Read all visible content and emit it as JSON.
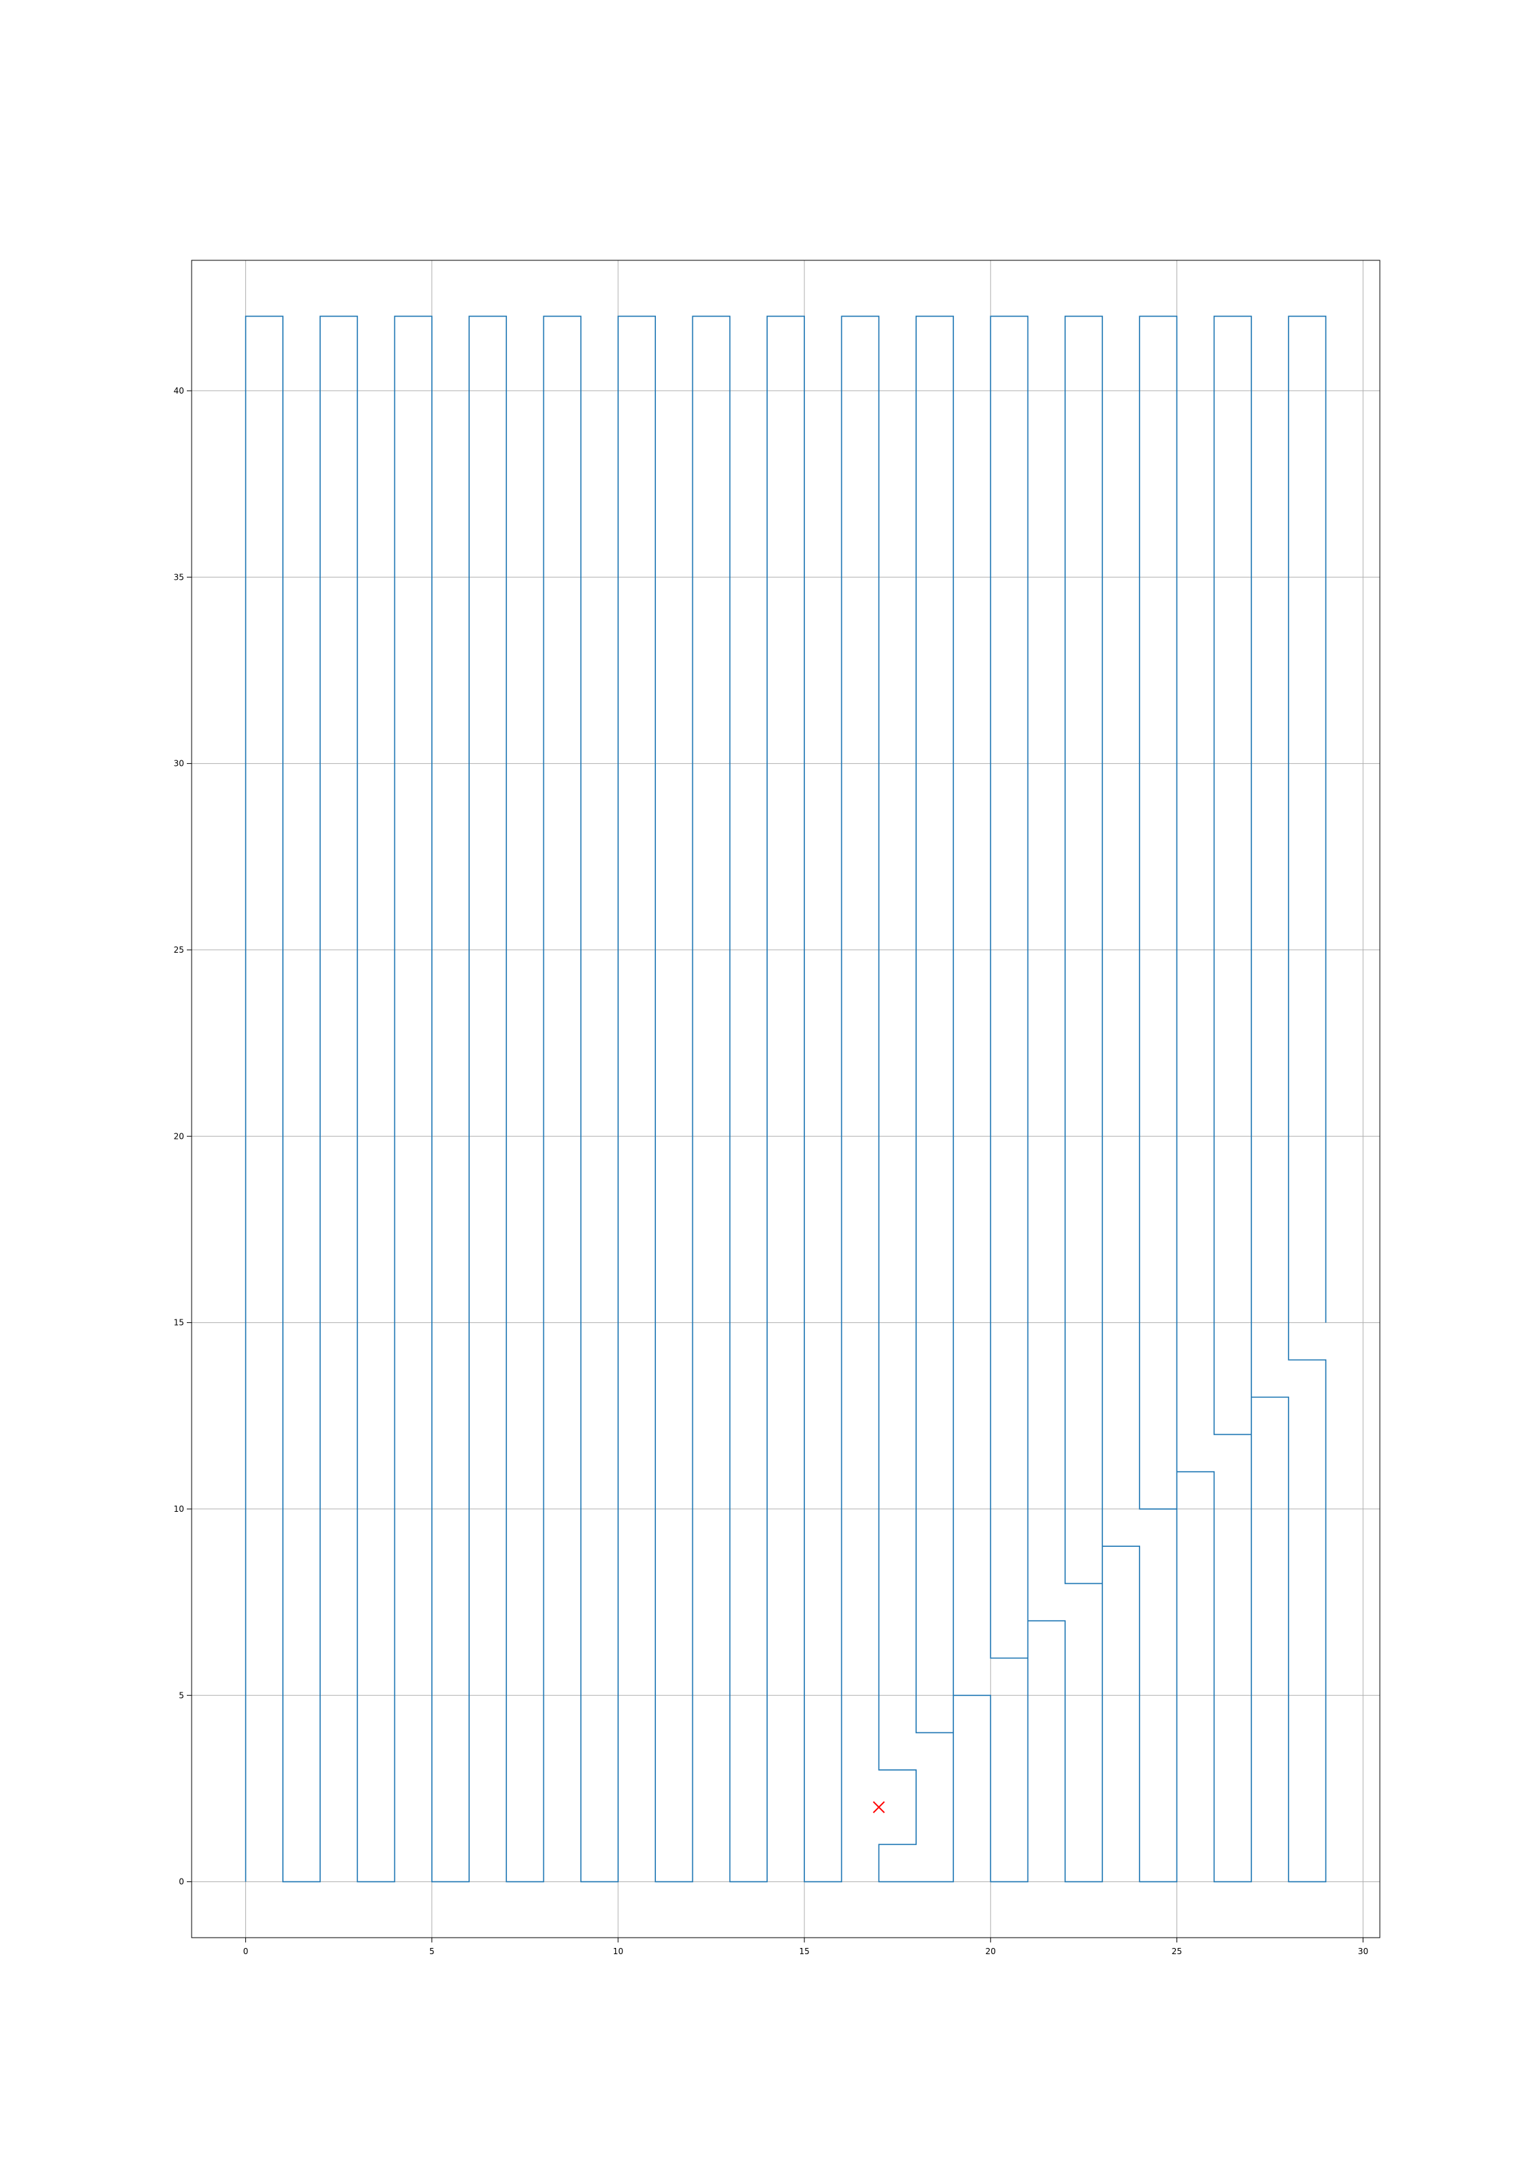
{
  "chart_data": {
    "type": "line",
    "title": "",
    "xlabel": "",
    "ylabel": "",
    "xlim": [
      -1.45,
      30.45
    ],
    "ylim": [
      -1.5,
      43.5
    ],
    "x_ticks": [
      0,
      5,
      10,
      15,
      20,
      25,
      30
    ],
    "y_ticks": [
      0,
      5,
      10,
      15,
      20,
      25,
      30,
      35,
      40
    ],
    "grid": true,
    "legend": "none",
    "series": [
      {
        "color": "#1f77b4",
        "points": [
          [
            0,
            0
          ],
          [
            0,
            42
          ],
          [
            1,
            42
          ],
          [
            1,
            0
          ],
          [
            2,
            0
          ],
          [
            2,
            42
          ],
          [
            3,
            42
          ],
          [
            3,
            0
          ],
          [
            4,
            0
          ],
          [
            4,
            42
          ],
          [
            5,
            42
          ],
          [
            5,
            0
          ],
          [
            6,
            0
          ],
          [
            6,
            42
          ],
          [
            7,
            42
          ],
          [
            7,
            0
          ],
          [
            8,
            0
          ],
          [
            8,
            42
          ],
          [
            9,
            42
          ],
          [
            9,
            0
          ],
          [
            10,
            0
          ],
          [
            10,
            42
          ],
          [
            11,
            42
          ],
          [
            11,
            0
          ],
          [
            12,
            0
          ],
          [
            12,
            42
          ],
          [
            13,
            42
          ],
          [
            13,
            0
          ],
          [
            14,
            0
          ],
          [
            14,
            42
          ],
          [
            15,
            42
          ],
          [
            15,
            0
          ],
          [
            16,
            0
          ],
          [
            16,
            42
          ],
          [
            17,
            42
          ],
          [
            17,
            3
          ],
          [
            18,
            3
          ],
          [
            18,
            1
          ],
          [
            17,
            1
          ],
          [
            17,
            0
          ],
          [
            19,
            0
          ],
          [
            19,
            42
          ],
          [
            18,
            42
          ],
          [
            18,
            4
          ],
          [
            19,
            4
          ],
          [
            19,
            5
          ],
          [
            20,
            5
          ],
          [
            20,
            0
          ],
          [
            21,
            0
          ],
          [
            21,
            42
          ],
          [
            20,
            42
          ],
          [
            20,
            6
          ],
          [
            21,
            6
          ],
          [
            21,
            7
          ],
          [
            22,
            7
          ],
          [
            22,
            0
          ],
          [
            23,
            0
          ],
          [
            23,
            42
          ],
          [
            22,
            42
          ],
          [
            22,
            8
          ],
          [
            23,
            8
          ],
          [
            23,
            9
          ],
          [
            24,
            9
          ],
          [
            24,
            0
          ],
          [
            25,
            0
          ],
          [
            25,
            42
          ],
          [
            24,
            42
          ],
          [
            24,
            10
          ],
          [
            25,
            10
          ],
          [
            25,
            11
          ],
          [
            26,
            11
          ],
          [
            26,
            0
          ],
          [
            27,
            0
          ],
          [
            27,
            42
          ],
          [
            26,
            42
          ],
          [
            26,
            12
          ],
          [
            27,
            12
          ],
          [
            27,
            13
          ],
          [
            28,
            13
          ],
          [
            28,
            0
          ],
          [
            29,
            0
          ],
          [
            29,
            14
          ],
          [
            28,
            14
          ],
          [
            28,
            42
          ],
          [
            29,
            42
          ],
          [
            29,
            15
          ]
        ]
      }
    ],
    "markers": [
      {
        "x": 17,
        "y": 2,
        "shape": "x",
        "color": "#ff0000"
      }
    ]
  }
}
